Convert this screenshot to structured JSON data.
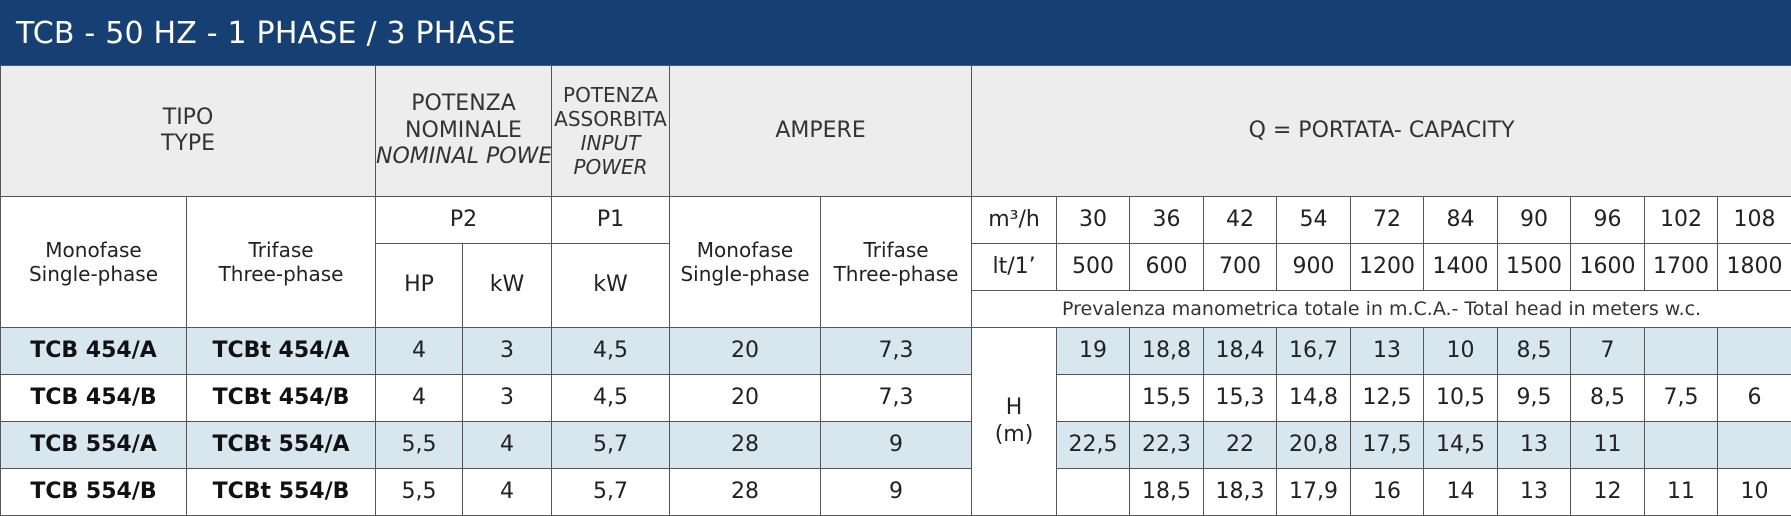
{
  "title": "TCB - 50 HZ - 1 PHASE / 3 PHASE",
  "header": {
    "tipo": "TIPO",
    "type": "TYPE",
    "potenza_nominale_1": "POTENZA",
    "potenza_nominale_2": "NOMINALE",
    "nominal_power": "NOMINAL POWER",
    "potenza_assorbita_1": "POTENZA",
    "potenza_assorbita_2": "ASSORBITA",
    "input_1": "INPUT",
    "input_2": "POWER",
    "ampere": "AMPERE",
    "capacity": "Q = PORTATA- CAPACITY",
    "monofase": "Monofase",
    "single_phase": "Single-phase",
    "trifase": "Trifase",
    "three_phase": "Three-phase",
    "p2": "P2",
    "p1": "P1",
    "hp": "HP",
    "kw": "kW",
    "kw2": "kW",
    "amp_monofase": "Monofase",
    "amp_single": "Single-phase",
    "amp_trifase": "Trifase",
    "amp_three": "Three-phase",
    "unit_m3": "m³/h",
    "unit_lt": "lt/1’",
    "head_note": "Prevalenza manometrica totale in m.C.A.- Total head in meters w.c.",
    "h_label": "H",
    "h_unit": "(m)"
  },
  "flow_m3h": [
    "30",
    "36",
    "42",
    "54",
    "72",
    "84",
    "90",
    "96",
    "102",
    "108"
  ],
  "flow_lt": [
    "500",
    "600",
    "700",
    "900",
    "1200",
    "1400",
    "1500",
    "1600",
    "1700",
    "1800"
  ],
  "rows": [
    {
      "mono": "TCB 454/A",
      "tri": "TCBt 454/A",
      "hp": "4",
      "kw": "3",
      "p1": "4,5",
      "amp1": "20",
      "amp3": "7,3",
      "h": [
        "19",
        "18,8",
        "18,4",
        "16,7",
        "13",
        "10",
        "8,5",
        "7",
        "",
        ""
      ]
    },
    {
      "mono": "TCB 454/B",
      "tri": "TCBt 454/B",
      "hp": "4",
      "kw": "3",
      "p1": "4,5",
      "amp1": "20",
      "amp3": "7,3",
      "h": [
        "",
        "15,5",
        "15,3",
        "14,8",
        "12,5",
        "10,5",
        "9,5",
        "8,5",
        "7,5",
        "6"
      ]
    },
    {
      "mono": "TCB 554/A",
      "tri": "TCBt 554/A",
      "hp": "5,5",
      "kw": "4",
      "p1": "5,7",
      "amp1": "28",
      "amp3": "9",
      "h": [
        "22,5",
        "22,3",
        "22",
        "20,8",
        "17,5",
        "14,5",
        "13",
        "11",
        "",
        ""
      ]
    },
    {
      "mono": "TCB 554/B",
      "tri": "TCBt 554/B",
      "hp": "5,5",
      "kw": "4",
      "p1": "5,7",
      "amp1": "28",
      "amp3": "9",
      "h": [
        "",
        "18,5",
        "18,3",
        "17,9",
        "16",
        "14",
        "13",
        "12",
        "11",
        "10"
      ]
    }
  ],
  "colors": {
    "title_bg": "#163f73",
    "header_bg": "#ededed",
    "row_highlight": "#d8e6f0"
  }
}
